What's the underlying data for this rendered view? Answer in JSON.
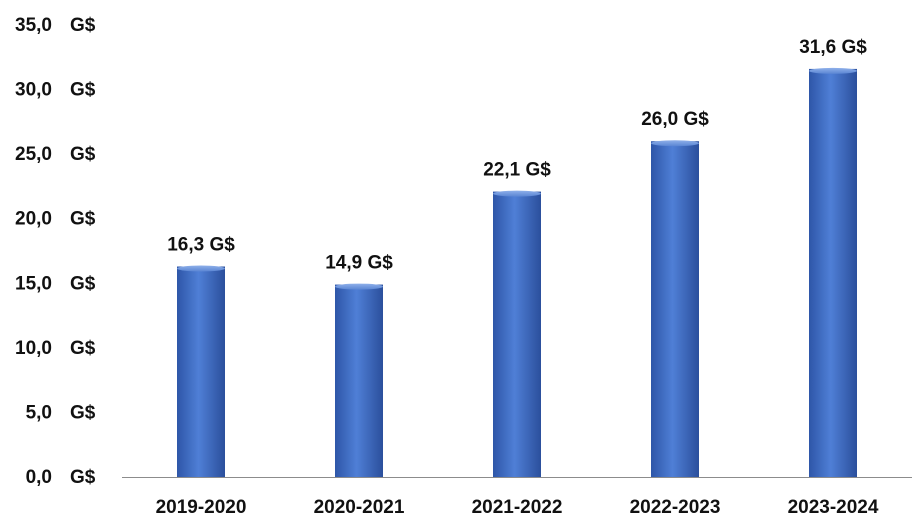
{
  "chart_data": {
    "type": "bar",
    "title": "",
    "xlabel": "",
    "ylabel": "",
    "categories": [
      "2019-2020",
      "2020-2021",
      "2021-2022",
      "2022-2023",
      "2023-2024"
    ],
    "values": [
      16.3,
      14.9,
      22.1,
      26.0,
      31.6
    ],
    "data_labels": [
      "16,3 G$",
      "14,9 G$",
      "22,1 G$",
      "26,0 G$",
      "31,6 G$"
    ],
    "ylim": [
      0,
      35
    ],
    "y_ticks": [
      0,
      5,
      10,
      15,
      20,
      25,
      30,
      35
    ],
    "y_tick_labels": [
      "0,0",
      "5,0",
      "10,0",
      "15,0",
      "20,0",
      "25,0",
      "30,0",
      "35,0"
    ],
    "y_tick_unit": "G$",
    "grid": false,
    "legend": "none",
    "bar_color": "#4472C4"
  }
}
